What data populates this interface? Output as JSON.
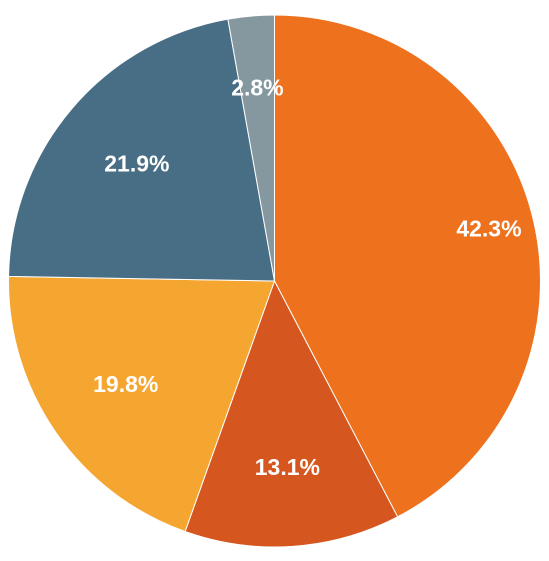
{
  "chart_data": {
    "type": "pie",
    "title": "",
    "start": "12 o'clock",
    "direction": "clockwise",
    "slices": [
      {
        "value": 42.3,
        "label": "42.3%",
        "color": "#EE711E"
      },
      {
        "value": 13.1,
        "label": "13.1%",
        "color": "#D5561E"
      },
      {
        "value": 19.8,
        "label": "19.8%",
        "color": "#F5A631"
      },
      {
        "value": 21.9,
        "label": "21.9%",
        "color": "#476E85"
      },
      {
        "value": 2.8,
        "label": "2.8%",
        "color": "#86989F"
      }
    ]
  }
}
